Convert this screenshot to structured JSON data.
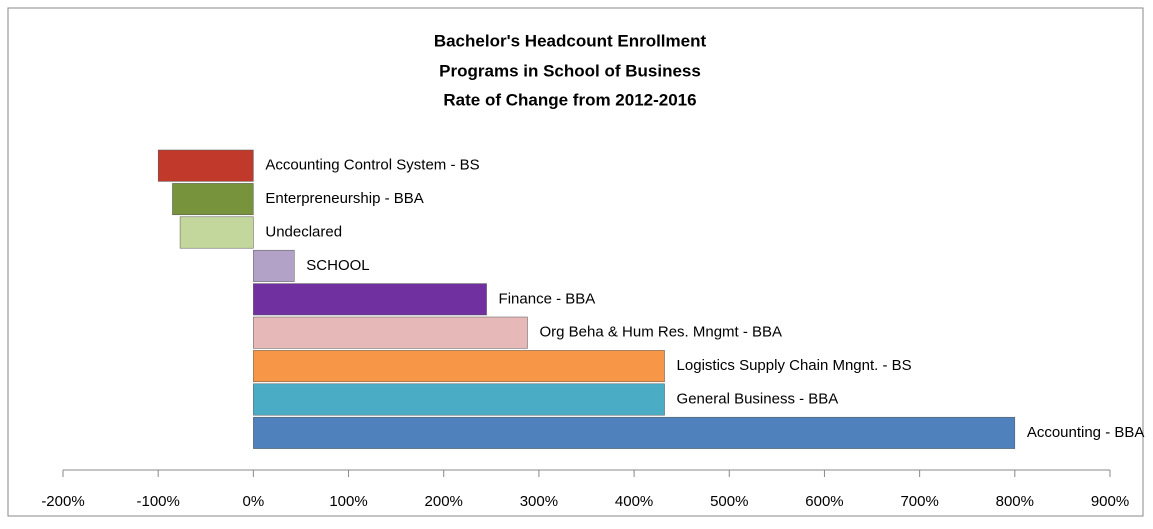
{
  "chart_data": {
    "type": "hbar",
    "title": [
      "Bachelor's Headcount Enrollment",
      "Programs in School of Business",
      "Rate of Change from 2012-2016"
    ],
    "categories": [
      "Accounting Control System - BS",
      "Enterpreneurship - BBA",
      "Undeclared",
      "SCHOOL",
      "Finance - BBA",
      "Org Beha & Hum Res. Mngmt - BBA",
      "Logistics Supply Chain Mngnt. - BS",
      "General Business - BBA",
      "Accounting - BBA"
    ],
    "values": [
      -100,
      -85,
      -77,
      43,
      245,
      288,
      432,
      432,
      800
    ],
    "colors": [
      "#c0392b",
      "#77933c",
      "#c3d69b",
      "#b3a2c7",
      "#7030a0",
      "#e6b9b8",
      "#f79646",
      "#4bacc6",
      "#4f81bd"
    ],
    "xlim": [
      -200,
      900
    ],
    "xticks": [
      {
        "value": -200,
        "label": "-200%"
      },
      {
        "value": -100,
        "label": "-100%"
      },
      {
        "value": 0,
        "label": "0%"
      },
      {
        "value": 100,
        "label": "100%"
      },
      {
        "value": 200,
        "label": "200%"
      },
      {
        "value": 300,
        "label": "300%"
      },
      {
        "value": 400,
        "label": "400%"
      },
      {
        "value": 500,
        "label": "500%"
      },
      {
        "value": 600,
        "label": "600%"
      },
      {
        "value": 700,
        "label": "700%"
      },
      {
        "value": 800,
        "label": "800%"
      },
      {
        "value": 900,
        "label": "900%"
      }
    ]
  }
}
